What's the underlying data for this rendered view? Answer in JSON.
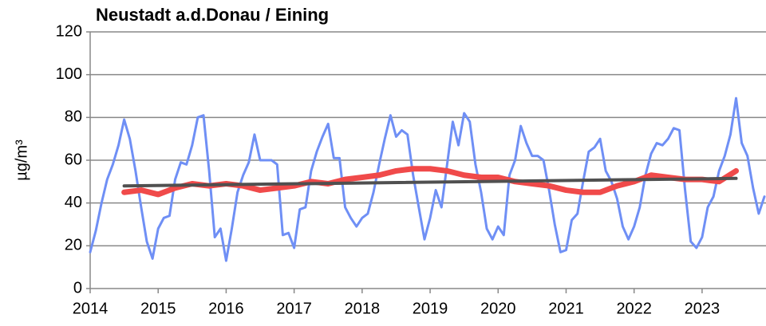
{
  "chart_data": {
    "type": "line",
    "title": "Neustadt a.d.Donau / Eining",
    "ylabel": "µg/m³",
    "xlim": [
      2014,
      2023.94
    ],
    "xticks": [
      2014,
      2015,
      2016,
      2017,
      2018,
      2019,
      2020,
      2021,
      2022,
      2023
    ],
    "ylim": [
      0,
      120
    ],
    "yticks": [
      0,
      20,
      40,
      60,
      80,
      100,
      120
    ],
    "grid": true,
    "series": [
      {
        "color": "#6f8ff5",
        "width": 3,
        "x": [
          2014,
          2014.083,
          2014.167,
          2014.25,
          2014.333,
          2014.417,
          2014.5,
          2014.583,
          2014.667,
          2014.75,
          2014.833,
          2014.917,
          2015,
          2015.083,
          2015.167,
          2015.25,
          2015.333,
          2015.417,
          2015.5,
          2015.583,
          2015.667,
          2015.75,
          2015.833,
          2015.917,
          2016,
          2016.083,
          2016.167,
          2016.25,
          2016.333,
          2016.417,
          2016.5,
          2016.583,
          2016.667,
          2016.75,
          2016.833,
          2016.917,
          2017,
          2017.083,
          2017.167,
          2017.25,
          2017.333,
          2017.417,
          2017.5,
          2017.583,
          2017.667,
          2017.75,
          2017.833,
          2017.917,
          2018,
          2018.083,
          2018.167,
          2018.25,
          2018.333,
          2018.417,
          2018.5,
          2018.583,
          2018.667,
          2018.75,
          2018.833,
          2018.917,
          2019,
          2019.083,
          2019.167,
          2019.25,
          2019.333,
          2019.417,
          2019.5,
          2019.583,
          2019.667,
          2019.75,
          2019.833,
          2019.917,
          2020,
          2020.083,
          2020.167,
          2020.25,
          2020.333,
          2020.417,
          2020.5,
          2020.583,
          2020.667,
          2020.75,
          2020.833,
          2020.917,
          2021,
          2021.083,
          2021.167,
          2021.25,
          2021.333,
          2021.417,
          2021.5,
          2021.583,
          2021.667,
          2021.75,
          2021.833,
          2021.917,
          2022,
          2022.083,
          2022.167,
          2022.25,
          2022.333,
          2022.417,
          2022.5,
          2022.583,
          2022.667,
          2022.75,
          2022.833,
          2022.917,
          2023,
          2023.083,
          2023.167,
          2023.25,
          2023.333,
          2023.417,
          2023.5,
          2023.583,
          2023.667,
          2023.75,
          2023.833,
          2023.917
        ],
        "values": [
          17,
          27,
          40,
          51,
          58,
          67,
          79,
          70,
          55,
          38,
          22,
          14,
          28,
          33,
          34,
          51,
          59,
          58,
          67,
          80,
          81,
          55,
          24,
          28,
          13,
          28,
          45,
          53,
          59,
          72,
          60,
          60,
          60,
          58,
          25,
          26,
          19,
          37,
          38,
          55,
          64,
          71,
          77,
          61,
          61,
          38,
          33,
          29,
          33,
          35,
          45,
          58,
          70,
          81,
          71,
          74,
          72,
          53,
          38,
          23,
          33,
          46,
          38,
          58,
          78,
          67,
          82,
          78,
          58,
          45,
          28,
          23,
          29,
          25,
          53,
          60,
          76,
          68,
          62,
          62,
          60,
          46,
          30,
          17,
          18,
          32,
          35,
          50,
          64,
          66,
          70,
          55,
          50,
          42,
          29,
          23,
          29,
          38,
          53,
          63,
          68,
          67,
          70,
          75,
          74,
          46,
          22,
          19,
          24,
          38,
          43,
          55,
          62,
          72,
          89,
          68,
          62,
          47,
          35,
          43
        ]
      },
      {
        "color": "#f04a4a",
        "width": 7,
        "x": [
          2014.5,
          2014.75,
          2015,
          2015.25,
          2015.5,
          2015.75,
          2016,
          2016.25,
          2016.5,
          2016.75,
          2017,
          2017.25,
          2017.5,
          2017.75,
          2018,
          2018.25,
          2018.5,
          2018.75,
          2019,
          2019.25,
          2019.5,
          2019.75,
          2020,
          2020.25,
          2020.5,
          2020.75,
          2021,
          2021.25,
          2021.5,
          2021.75,
          2022,
          2022.25,
          2022.5,
          2022.75,
          2023,
          2023.25,
          2023.5
        ],
        "values": [
          45,
          46,
          44,
          47,
          49,
          48,
          49,
          48,
          46,
          47,
          48,
          50,
          49,
          51,
          52,
          53,
          55,
          56,
          56,
          55,
          53,
          52,
          52,
          50,
          49,
          48,
          46,
          45,
          45,
          48,
          50,
          53,
          52,
          51,
          51,
          50,
          55
        ]
      },
      {
        "color": "#505050",
        "width": 4,
        "x": [
          2014.5,
          2023.5
        ],
        "values": [
          48,
          51.5
        ]
      }
    ]
  }
}
